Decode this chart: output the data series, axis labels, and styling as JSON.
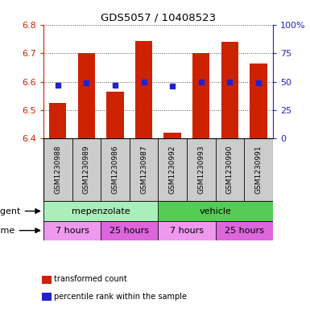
{
  "title": "GDS5057 / 10408523",
  "samples": [
    "GSM1230988",
    "GSM1230989",
    "GSM1230986",
    "GSM1230987",
    "GSM1230992",
    "GSM1230993",
    "GSM1230990",
    "GSM1230991"
  ],
  "bar_values": [
    6.525,
    6.7,
    6.565,
    6.745,
    6.42,
    6.7,
    6.74,
    6.665
  ],
  "bar_base": 6.4,
  "percentile_values": [
    6.587,
    6.597,
    6.588,
    6.6,
    6.583,
    6.598,
    6.6,
    6.597
  ],
  "ylim": [
    6.4,
    6.8
  ],
  "yticks_left": [
    6.4,
    6.5,
    6.6,
    6.7,
    6.8
  ],
  "yticks_right_vals": [
    0,
    25,
    50,
    75,
    100
  ],
  "yticks_right_labels": [
    "0",
    "25",
    "50",
    "75",
    "100%"
  ],
  "bar_color": "#cc2200",
  "percentile_color": "#2222cc",
  "grid_color": "#555555",
  "agent_groups": [
    {
      "label": "mepenzolate",
      "start": 0,
      "end": 4,
      "color": "#aaeebb"
    },
    {
      "label": "vehicle",
      "start": 4,
      "end": 8,
      "color": "#55cc55"
    }
  ],
  "time_groups": [
    {
      "label": "7 hours",
      "start": 0,
      "end": 2,
      "color": "#ee99ee"
    },
    {
      "label": "25 hours",
      "start": 2,
      "end": 4,
      "color": "#dd66dd"
    },
    {
      "label": "7 hours",
      "start": 4,
      "end": 6,
      "color": "#ee99ee"
    },
    {
      "label": "25 hours",
      "start": 6,
      "end": 8,
      "color": "#dd66dd"
    }
  ],
  "legend_items": [
    {
      "color": "#cc2200",
      "label": "transformed count"
    },
    {
      "color": "#2222cc",
      "label": "percentile rank within the sample"
    }
  ],
  "left_axis_color": "#cc2200",
  "right_axis_color": "#2222cc",
  "bar_width": 0.6,
  "sample_bg_color": "#cccccc",
  "outer_border_color": "#888888"
}
